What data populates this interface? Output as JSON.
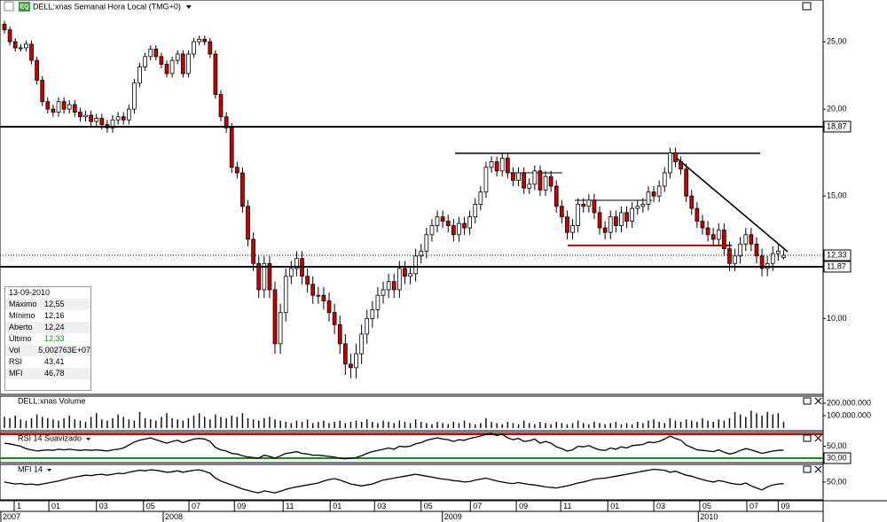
{
  "header": {
    "icon": "EQ",
    "title": "DELL:xnas Semanal Hora Local (TMG+0)"
  },
  "chart_data": [
    {
      "type": "candlestick",
      "log": true,
      "up_color": "#ffffff",
      "down_color": "#cc0000",
      "xlim": [
        -0.82,
        151.3
      ],
      "ylim": [
        7.78,
        28.7
      ],
      "yticks": [
        {
          "value": 25,
          "label": "25,00"
        },
        {
          "value": 20,
          "label": "20,00"
        },
        {
          "value": 15,
          "label": "15,00"
        },
        {
          "value": 10,
          "label": "10,00"
        }
      ],
      "xticks": [
        {
          "value": 1.8,
          "label": "1"
        },
        {
          "value": 8.2,
          "label": "01"
        },
        {
          "value": 17.0,
          "label": "03"
        },
        {
          "value": 25.7,
          "label": "05"
        },
        {
          "value": 34.1,
          "label": "07"
        },
        {
          "value": 42.5,
          "label": "09"
        },
        {
          "value": 51.5,
          "label": "11"
        },
        {
          "value": 60.2,
          "label": "01"
        },
        {
          "value": 68.4,
          "label": "03"
        },
        {
          "value": 77.0,
          "label": "05"
        },
        {
          "value": 86.1,
          "label": "07"
        },
        {
          "value": 94.6,
          "label": "09"
        },
        {
          "value": 102.8,
          "label": "11"
        },
        {
          "value": 111.5,
          "label": "01"
        },
        {
          "value": 120.0,
          "label": "03"
        },
        {
          "value": 128.5,
          "label": "05"
        },
        {
          "value": 137.2,
          "label": "07"
        },
        {
          "value": 143.0,
          "label": "09"
        }
      ],
      "year_labels": [
        {
          "value": -0.5,
          "label": "2007"
        },
        {
          "value": 29.5,
          "label": "2008"
        },
        {
          "value": 81.1,
          "label": "2009"
        },
        {
          "value": 128.4,
          "label": "2010"
        }
      ],
      "levels": [
        {
          "value": 18.87,
          "label": "18,87"
        },
        {
          "value": 11.87,
          "label": "11,87"
        }
      ],
      "last_price": {
        "value": 12.33,
        "label": "12,33"
      },
      "open": [
        26.5,
        26,
        25,
        24.5,
        24.5,
        24.8,
        23.5,
        22,
        20.5,
        20,
        19.8,
        20.5,
        20,
        20.3,
        19.8,
        19.5,
        19.6,
        19.2,
        19.4,
        19,
        18.8,
        19.3,
        19.5,
        19.3,
        20,
        21.8,
        23,
        23.8,
        24.4,
        23.8,
        23.2,
        22.5,
        23.5,
        24,
        22.5,
        24,
        25,
        25.2,
        25,
        24,
        21,
        19.5,
        18.8,
        16.5,
        16.2,
        14.5,
        13,
        12,
        11,
        12,
        11,
        9.2,
        10.2,
        11.5,
        11.8,
        12.2,
        11.5,
        11.2,
        10.8,
        10.8,
        10.6,
        10.2,
        9.8,
        9.2,
        8.6,
        8.5,
        8.9,
        9.5,
        10,
        10.3,
        10.8,
        11,
        11.3,
        11,
        11.8,
        11.5,
        11.6,
        12.3,
        12.5,
        13.2,
        13.6,
        14,
        13.8,
        13.6,
        13.2,
        13.7,
        13.5,
        14,
        14.6,
        15.2,
        16.5,
        16.8,
        16.3,
        17,
        16.2,
        15.8,
        16.2,
        15.4,
        15.6,
        16.3,
        15.3,
        16,
        15.5,
        14.5,
        14,
        13.3,
        13.6,
        14.6,
        14.5,
        14.8,
        14.2,
        13.5,
        13.3,
        14,
        13.6,
        14.2,
        13.8,
        14.4,
        14.5,
        14.6,
        15.2,
        15,
        15.5,
        16.2,
        17.3,
        16.8,
        16.4,
        15,
        14.4,
        13.8,
        13.5,
        13.2,
        13,
        13.4,
        12.6,
        12,
        12.3,
        12.8,
        13.2,
        12.8,
        12.3,
        11.8,
        12,
        12.4,
        12.24
      ],
      "high": [
        26.8,
        26.3,
        25.3,
        24.8,
        25.1,
        25.1,
        23.8,
        22.3,
        20.8,
        20.3,
        20.8,
        20.8,
        20.6,
        20.6,
        20.1,
        19.9,
        19.9,
        19.7,
        19.7,
        19.3,
        19.6,
        19.8,
        19.8,
        20.3,
        22.1,
        23.3,
        24.1,
        24.7,
        24.7,
        24.1,
        23.5,
        23.8,
        24.3,
        24.3,
        24.3,
        25.3,
        25.5,
        25.5,
        25.3,
        24.3,
        21.3,
        19.8,
        19.1,
        16.8,
        16.5,
        14.8,
        13.3,
        12.3,
        12.3,
        12.3,
        11.3,
        10.5,
        11.8,
        12.1,
        12.5,
        12.5,
        11.8,
        11.5,
        11.1,
        11.1,
        10.9,
        10.5,
        10.1,
        9.5,
        8.9,
        9.2,
        9.8,
        10.3,
        10.6,
        11.1,
        11.3,
        11.6,
        11.6,
        12.1,
        12.1,
        11.9,
        12.6,
        12.8,
        13.5,
        13.9,
        14.3,
        14.3,
        14.1,
        13.9,
        14,
        14,
        14.3,
        14.9,
        15.5,
        16.8,
        17.1,
        17.1,
        17.3,
        17.3,
        16.5,
        16.5,
        16.5,
        15.9,
        16.6,
        16.6,
        16.3,
        16.3,
        15.8,
        14.8,
        14.3,
        13.9,
        14.9,
        14.9,
        15.1,
        15.1,
        14.5,
        13.8,
        14.3,
        14.3,
        14.5,
        14.5,
        14.7,
        14.8,
        14.9,
        15.5,
        15.5,
        15.8,
        16.5,
        17.6,
        17.6,
        17.1,
        16.7,
        15.3,
        14.7,
        14.1,
        13.8,
        13.5,
        13.7,
        13.7,
        12.9,
        12.6,
        13.1,
        13.5,
        13.5,
        13.1,
        12.6,
        12.3,
        12.7,
        12.8,
        12.55
      ],
      "low": [
        25.7,
        24.7,
        24.2,
        24.2,
        24.2,
        23.2,
        21.7,
        20.2,
        19.7,
        19.5,
        19.5,
        19.7,
        19.7,
        19.5,
        19.2,
        19.2,
        18.9,
        18.9,
        18.7,
        18.5,
        18.5,
        19,
        19,
        19,
        19.7,
        21.5,
        22.7,
        23.5,
        23.5,
        22.9,
        22.2,
        22.2,
        23.2,
        22.2,
        22.2,
        23.7,
        24.7,
        24.7,
        23.7,
        20.7,
        19.2,
        18.5,
        16.2,
        15.9,
        14.2,
        12.7,
        11.7,
        10.7,
        10.7,
        10.7,
        8.9,
        8.9,
        9.9,
        11.2,
        11.5,
        11.2,
        10.9,
        10.5,
        10.5,
        10.3,
        9.9,
        9.5,
        8.9,
        8.3,
        8.2,
        8.2,
        8.6,
        9.2,
        9.7,
        10,
        10.5,
        10.7,
        10.7,
        10.7,
        11.2,
        11.2,
        11.3,
        12,
        12.2,
        12.9,
        13.3,
        13.5,
        13.3,
        12.9,
        12.9,
        13.2,
        13.2,
        13.7,
        14.3,
        14.9,
        16.2,
        16,
        16,
        15.9,
        15.5,
        15.5,
        15.1,
        15.1,
        15.3,
        15,
        15,
        15.2,
        14.2,
        13.7,
        13,
        13,
        13.3,
        14.2,
        14.2,
        13.9,
        13.2,
        13,
        13,
        13.3,
        13.3,
        13.5,
        13.5,
        14.1,
        14.2,
        14.3,
        14.7,
        14.7,
        15.2,
        15.9,
        16.5,
        16.1,
        14.7,
        14.1,
        13.5,
        13.2,
        12.9,
        12.7,
        12.7,
        12.3,
        11.7,
        11.7,
        12,
        12.5,
        12.5,
        12,
        11.5,
        11.5,
        11.7,
        12.1,
        12.16
      ],
      "close": [
        26,
        25,
        24.5,
        24.5,
        24.8,
        23.5,
        22,
        20.5,
        20,
        19.8,
        20.5,
        20,
        20.3,
        19.8,
        19.5,
        19.6,
        19.2,
        19.4,
        19,
        18.8,
        19.3,
        19.5,
        19.3,
        20,
        21.8,
        23,
        23.8,
        24.4,
        23.8,
        23.2,
        22.5,
        23.5,
        24,
        22.5,
        24,
        25,
        25.2,
        25,
        24,
        21,
        19.5,
        18.8,
        16.5,
        16.2,
        14.5,
        13,
        12,
        11,
        12,
        11,
        9.2,
        10.2,
        11.5,
        11.8,
        12.2,
        11.5,
        11.2,
        10.8,
        10.8,
        10.6,
        10.2,
        9.8,
        9.2,
        8.6,
        8.5,
        8.9,
        9.5,
        10,
        10.3,
        10.8,
        11,
        11.3,
        11,
        11.8,
        11.5,
        11.6,
        12.3,
        12.5,
        13.2,
        13.6,
        14,
        13.8,
        13.6,
        13.2,
        13.7,
        13.5,
        14,
        14.6,
        15.2,
        16.5,
        16.8,
        16.3,
        17,
        16.2,
        15.8,
        16.2,
        15.4,
        15.6,
        16.3,
        15.3,
        16,
        15.5,
        14.5,
        14,
        13.3,
        13.6,
        14.6,
        14.5,
        14.8,
        14.2,
        13.5,
        13.3,
        14,
        13.6,
        14.2,
        13.8,
        14.4,
        14.5,
        14.6,
        15.2,
        15,
        15.5,
        16.2,
        17.3,
        16.8,
        16.4,
        15,
        14.4,
        13.8,
        13.5,
        13.2,
        13,
        13.4,
        12.6,
        12,
        12.3,
        12.8,
        13.2,
        12.8,
        12.3,
        11.8,
        12,
        12.4,
        12.5,
        12.33
      ]
    },
    {
      "type": "bar",
      "title": "DELL:xnas Volume",
      "color": "#000000",
      "ylim": [
        0,
        257000000
      ],
      "yticks": [
        {
          "value": 200000000,
          "label": "200.000.000"
        },
        {
          "value": 100000000,
          "label": "100.000.000"
        }
      ],
      "values": [
        90000000.0,
        80000000.0,
        100000000.0,
        70000000.0,
        60000000.0,
        80000000.0,
        110000000.0,
        90000000.0,
        80000000.0,
        70000000.0,
        60000000.0,
        80000000.0,
        100000000.0,
        70000000.0,
        60000000.0,
        50000000.0,
        90000000.0,
        120000000.0,
        70000000.0,
        60000000.0,
        80000000.0,
        110000000.0,
        90000000.0,
        70000000.0,
        60000000.0,
        130000000.0,
        80000000.0,
        70000000.0,
        60000000.0,
        90000000.0,
        120000000.0,
        80000000.0,
        70000000.0,
        60000000.0,
        80000000.0,
        100000000.0,
        120000000.0,
        90000000.0,
        70000000.0,
        110000000.0,
        90000000.0,
        80000000.0,
        100000000.0,
        90000000.0,
        120000000.0,
        80000000.0,
        70000000.0,
        60000000.0,
        80000000.0,
        90000000.0,
        70000000.0,
        60000000.0,
        50000000.0,
        40000000.0,
        60000000.0,
        50000000.0,
        70000000.0,
        40000000.0,
        50000000.0,
        60000000.0,
        40000000.0,
        50000000.0,
        60000000.0,
        40000000.0,
        50000000.0,
        60000000.0,
        50000000.0,
        70000000.0,
        50000000.0,
        40000000.0,
        60000000.0,
        50000000.0,
        40000000.0,
        60000000.0,
        50000000.0,
        40000000.0,
        70000000.0,
        50000000.0,
        40000000.0,
        30000000.0,
        50000000.0,
        40000000.0,
        30000000.0,
        50000000.0,
        40000000.0,
        60000000.0,
        40000000.0,
        30000000.0,
        40000000.0,
        80000000.0,
        50000000.0,
        40000000.0,
        30000000.0,
        50000000.0,
        40000000.0,
        30000000.0,
        60000000.0,
        40000000.0,
        30000000.0,
        50000000.0,
        40000000.0,
        30000000.0,
        50000000.0,
        40000000.0,
        30000000.0,
        40000000.0,
        60000000.0,
        40000000.0,
        30000000.0,
        50000000.0,
        40000000.0,
        30000000.0,
        40000000.0,
        50000000.0,
        30000000.0,
        40000000.0,
        30000000.0,
        50000000.0,
        40000000.0,
        60000000.0,
        70000000.0,
        50000000.0,
        40000000.0,
        80000000.0,
        60000000.0,
        50000000.0,
        70000000.0,
        60000000.0,
        50000000.0,
        80000000.0,
        60000000.0,
        50000000.0,
        70000000.0,
        60000000.0,
        80000000.0,
        130000000.0,
        110000000.0,
        90000000.0,
        140000000.0,
        120000000.0,
        100000000.0,
        130000000.0,
        110000000.0,
        120000000.0,
        50027630.0
      ]
    },
    {
      "type": "line",
      "title": "RSI 14 Suavizado",
      "color": "#000000",
      "ylim": [
        22.6,
        71.5
      ],
      "yticks": [
        {
          "value": 50,
          "label": "50,00"
        },
        {
          "value": 30,
          "label": "30,00"
        }
      ],
      "levels": [
        {
          "value": 70,
          "color": "#d00000"
        },
        {
          "value": 30,
          "color": "#109010"
        }
      ],
      "values": [
        55,
        54,
        52,
        50,
        46,
        44,
        42,
        43,
        44,
        43,
        45,
        44,
        45,
        44,
        43,
        44,
        43,
        44,
        43,
        42,
        44,
        45,
        47,
        52,
        57,
        60,
        62,
        64,
        61,
        58,
        55,
        58,
        60,
        56,
        59,
        62,
        63,
        62,
        58,
        48,
        44,
        42,
        38,
        37,
        34,
        32,
        31,
        30,
        35,
        33,
        30,
        34,
        38,
        39,
        41,
        38,
        37,
        35,
        35,
        34,
        33,
        32,
        30,
        29,
        30,
        31,
        34,
        38,
        41,
        43,
        45,
        47,
        45,
        50,
        49,
        50,
        54,
        56,
        60,
        62,
        64,
        62,
        61,
        58,
        61,
        60,
        63,
        65,
        67,
        70,
        71,
        68,
        70,
        64,
        61,
        63,
        58,
        59,
        62,
        55,
        58,
        55,
        49,
        46,
        42,
        44,
        50,
        49,
        51,
        47,
        44,
        43,
        47,
        45,
        49,
        47,
        51,
        52,
        53,
        57,
        56,
        58,
        62,
        67,
        63,
        60,
        52,
        48,
        44,
        43,
        42,
        41,
        44,
        40,
        37,
        39,
        43,
        46,
        44,
        41,
        38,
        40,
        42,
        43,
        43.41
      ]
    },
    {
      "type": "line",
      "title": "MFI 14",
      "color": "#000000",
      "ylim": [
        15.5,
        86
      ],
      "yticks": [
        {
          "value": 50,
          "label": "50,00"
        }
      ],
      "values": [
        50,
        48,
        46,
        47,
        45,
        46,
        44,
        46,
        48,
        50,
        52,
        55,
        58,
        60,
        62,
        64,
        63,
        65,
        66,
        64,
        66,
        68,
        67,
        70,
        72,
        74,
        73,
        75,
        74,
        72,
        70,
        71,
        73,
        70,
        72,
        74,
        75,
        72,
        68,
        58,
        52,
        48,
        44,
        40,
        36,
        33,
        30,
        28,
        32,
        30,
        28,
        31,
        35,
        38,
        40,
        42,
        44,
        46,
        48,
        52,
        55,
        57,
        54,
        50,
        46,
        44,
        42,
        44,
        46,
        50,
        54,
        56,
        58,
        60,
        62,
        64,
        66,
        64,
        62,
        60,
        58,
        56,
        55,
        53,
        52,
        50,
        51,
        54,
        56,
        58,
        55,
        52,
        50,
        48,
        47,
        49,
        47,
        45,
        44,
        42,
        40,
        39,
        38,
        40,
        42,
        45,
        48,
        50,
        53,
        56,
        57,
        58,
        60,
        62,
        64,
        66,
        68,
        70,
        72,
        74,
        76,
        75,
        74,
        70,
        72,
        68,
        64,
        62,
        58,
        55,
        52,
        50,
        53,
        51,
        48,
        46,
        45,
        48,
        42,
        38,
        34,
        40,
        44,
        46,
        46.78
      ]
    }
  ],
  "info_box": {
    "date": "13-09-2010",
    "rows": [
      [
        "Máximo",
        "12,55"
      ],
      [
        "Mínimo",
        "12,16"
      ],
      [
        "Aberto",
        "12,24"
      ],
      [
        "Último",
        "12,33"
      ],
      [
        "Vol",
        "5,002763E+07"
      ],
      [
        "RSI",
        "43,41"
      ],
      [
        "MFI",
        "46,78"
      ]
    ]
  }
}
